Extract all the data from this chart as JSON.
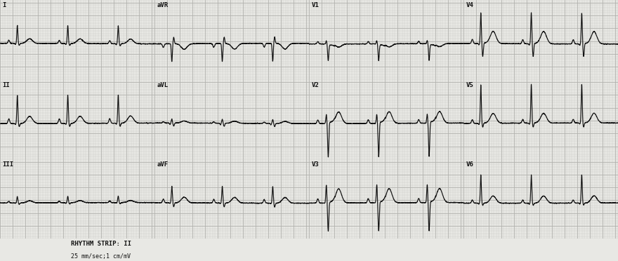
{
  "bg_color": "#e8e8e4",
  "grid_minor_color": "#c8c8c4",
  "grid_major_color": "#b0b0ac",
  "ecg_color": "#111111",
  "text_color": "#111111",
  "fig_width": 8.8,
  "fig_height": 3.72,
  "rhythm_text": "RHYTHM STRIP: II",
  "rhythm_text2": "25 mm/sec;1 cm/mV",
  "leads_grid": [
    [
      "I",
      "aVR",
      "V1",
      "V4"
    ],
    [
      "II",
      "aVL",
      "V2",
      "V5"
    ],
    [
      "III",
      "aVF",
      "V3",
      "V6"
    ]
  ],
  "rr_interval": 0.8,
  "fs": 500
}
